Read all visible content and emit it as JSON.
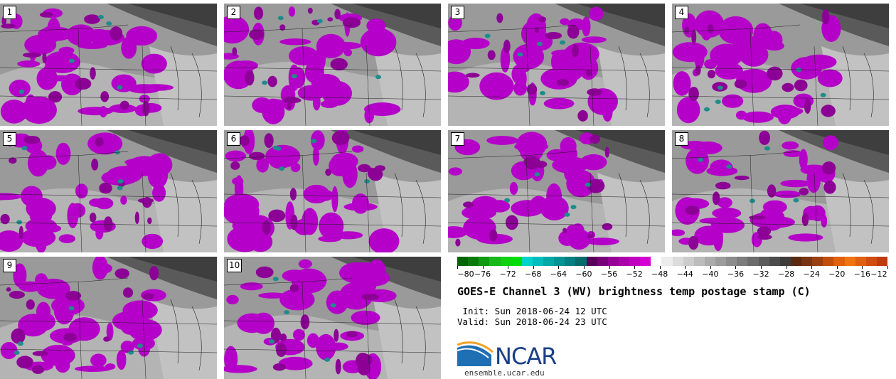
{
  "panels": [
    {
      "label": "1"
    },
    {
      "label": "2"
    },
    {
      "label": "3"
    },
    {
      "label": "4"
    },
    {
      "label": "5"
    },
    {
      "label": "6"
    },
    {
      "label": "7"
    },
    {
      "label": "8"
    },
    {
      "label": "9"
    },
    {
      "label": "10"
    }
  ],
  "colorbar": {
    "ticks": [
      "−80",
      "−76",
      "−72",
      "−68",
      "−64",
      "−60",
      "−56",
      "−52",
      "−48",
      "−44",
      "−40",
      "−36",
      "−32",
      "−28",
      "−24",
      "−20",
      "−16",
      "−12"
    ],
    "colors": [
      "#006400",
      "#0a7a0a",
      "#129a12",
      "#18b818",
      "#10d210",
      "#00dc00",
      "#00d4c8",
      "#00bebe",
      "#00a8a8",
      "#009494",
      "#008080",
      "#006c6c",
      "#5a005a",
      "#780078",
      "#960096",
      "#aa00aa",
      "#c000c0",
      "#d400d4",
      "#ffffff",
      "#ececec",
      "#dcdcdc",
      "#cccccc",
      "#bcbcbc",
      "#acacac",
      "#9c9c9c",
      "#8c8c8c",
      "#7c7c7c",
      "#6c6c6c",
      "#5c5c5c",
      "#4c4c4c",
      "#3c3c3c",
      "#5a2a10",
      "#7a3412",
      "#9a4010",
      "#c04e0e",
      "#e0600c",
      "#f07410",
      "#e06012",
      "#d04c10",
      "#c03a0e"
    ]
  },
  "title": "GOES-E Channel 3 (WV) brightness temp postage stamp (C)",
  "init": " Init: Sun 2018-06-24 12 UTC",
  "valid": "Valid: Sun 2018-06-24 23 UTC",
  "logo": {
    "text": "NCAR",
    "site": "ensemble.ucar.edu"
  }
}
